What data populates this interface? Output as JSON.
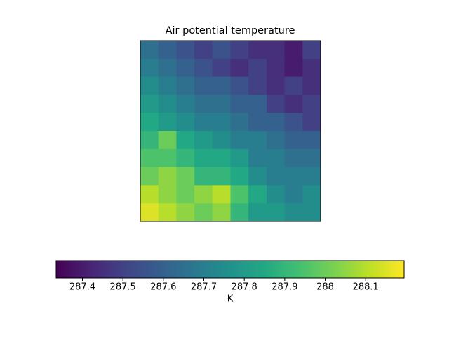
{
  "chart_data": {
    "type": "heatmap",
    "title": "Air potential temperature",
    "colormap": "viridis",
    "z": [
      [
        287.65,
        287.6,
        287.55,
        287.5,
        287.55,
        287.5,
        287.45,
        287.45,
        287.4,
        287.5
      ],
      [
        287.7,
        287.65,
        287.6,
        287.55,
        287.5,
        287.45,
        287.5,
        287.45,
        287.4,
        287.45
      ],
      [
        287.75,
        287.7,
        287.65,
        287.6,
        287.6,
        287.55,
        287.5,
        287.45,
        287.5,
        287.45
      ],
      [
        287.8,
        287.75,
        287.7,
        287.65,
        287.65,
        287.6,
        287.6,
        287.5,
        287.45,
        287.5
      ],
      [
        287.85,
        287.8,
        287.75,
        287.7,
        287.7,
        287.65,
        287.6,
        287.6,
        287.55,
        287.5
      ],
      [
        287.9,
        288.0,
        287.85,
        287.8,
        287.75,
        287.7,
        287.7,
        287.65,
        287.6,
        287.6
      ],
      [
        287.95,
        287.95,
        287.9,
        287.85,
        287.85,
        287.8,
        287.7,
        287.7,
        287.65,
        287.65
      ],
      [
        288.0,
        288.05,
        288.0,
        287.9,
        287.9,
        287.85,
        287.75,
        287.7,
        287.7,
        287.7
      ],
      [
        288.1,
        288.05,
        288.0,
        288.05,
        288.1,
        287.95,
        287.85,
        287.75,
        287.7,
        287.75
      ],
      [
        288.15,
        288.1,
        288.05,
        288.0,
        288.05,
        287.9,
        287.8,
        287.8,
        287.75,
        287.75
      ]
    ],
    "clim": [
      287.335,
      288.195
    ],
    "cticks": [
      287.4,
      287.5,
      287.6,
      287.7,
      287.8,
      287.9,
      288.0,
      288.1
    ],
    "colorbar_label": "K"
  }
}
